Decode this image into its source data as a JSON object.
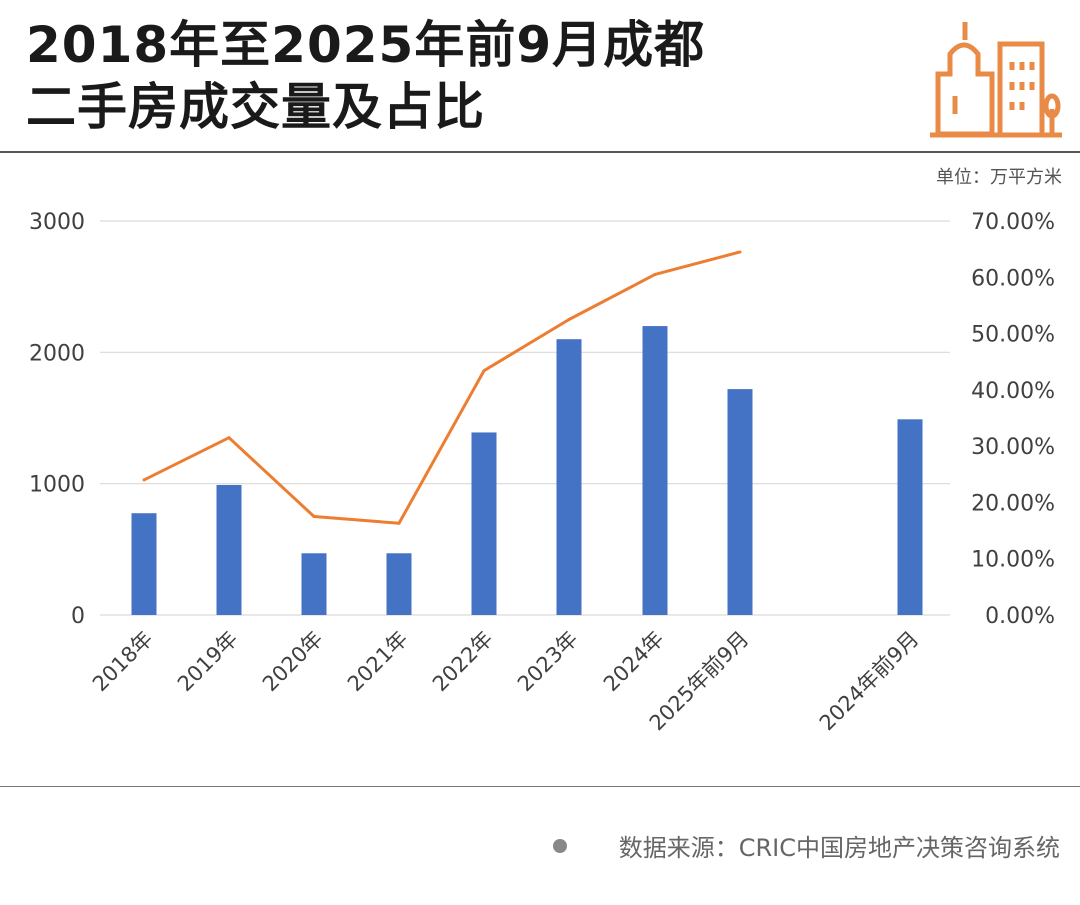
{
  "title": {
    "line1": "2018年至2025年前9月成都",
    "line2": "二手房成交量及占比"
  },
  "unit_label": "单位：万平方米",
  "source": "数据来源：CRIC中国房地产决策咨询系统",
  "logo_icon": "city-buildings-icon",
  "colors": {
    "bar": "#4472C4",
    "line": "#ED7D31",
    "logo": "#E98B47",
    "grid": "#D9D9D9"
  },
  "chart_data": {
    "type": "bar",
    "categories": [
      "2018年",
      "2019年",
      "2020年",
      "2021年",
      "2022年",
      "2023年",
      "2024年",
      "2025年前9月",
      "2024年前9月"
    ],
    "series": [
      {
        "type": "bar",
        "axis": "left",
        "values": [
          775,
          990,
          470,
          470,
          1390,
          2100,
          2200,
          1720,
          1490
        ]
      },
      {
        "type": "line",
        "axis": "right",
        "values": [
          0.24,
          0.315,
          0.175,
          0.163,
          0.434,
          0.525,
          0.605,
          0.645,
          null
        ]
      }
    ],
    "y_left": {
      "min": 0,
      "max": 3000,
      "ticks": [
        0,
        1000,
        2000,
        3000
      ],
      "tick_labels": [
        "0",
        "1000",
        "2000",
        "3000"
      ]
    },
    "y_right": {
      "min": 0,
      "max": 0.7,
      "ticks": [
        0,
        0.1,
        0.2,
        0.3,
        0.4,
        0.5,
        0.6,
        0.7
      ],
      "tick_labels": [
        "0.00%",
        "10.00%",
        "20.00%",
        "30.00%",
        "40.00%",
        "50.00%",
        "60.00%",
        "70.00%"
      ]
    },
    "grid": true,
    "legend": "none"
  }
}
